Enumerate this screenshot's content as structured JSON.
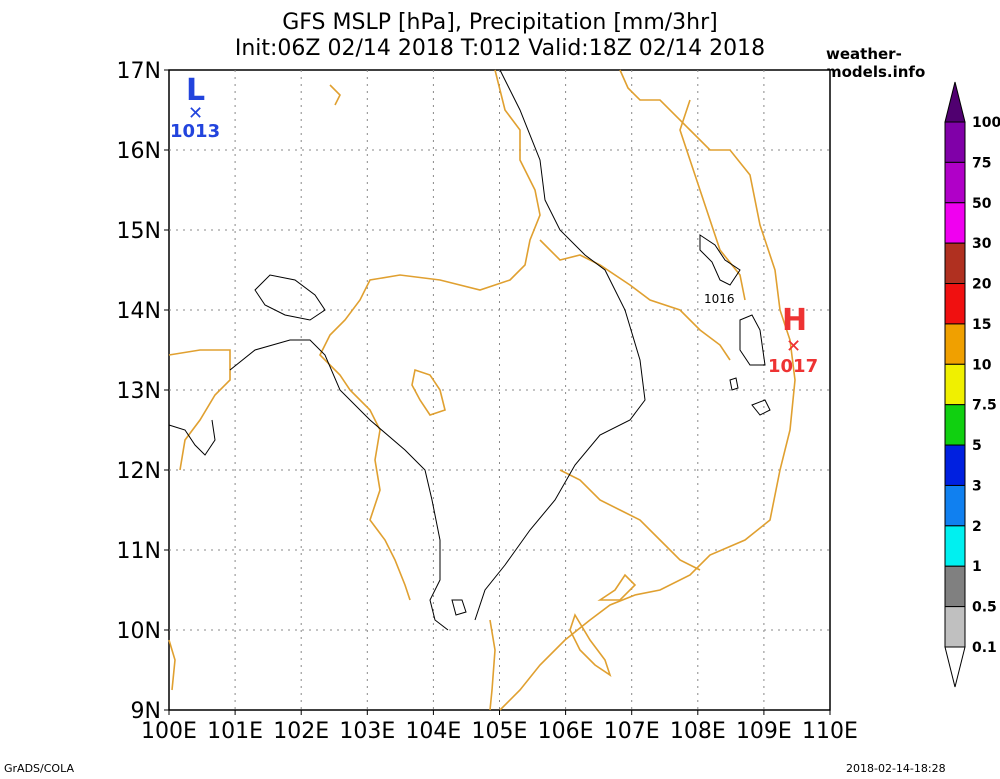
{
  "title_line1": "GFS MSLP [hPa], Precipitation [mm/3hr]",
  "title_line2": "Init:06Z 02/14 2018 T:012 Valid:18Z 02/14 2018",
  "site": "weather-models.info",
  "footer_left": "GrADS/COLA",
  "footer_right": "2018-02-14-18:28",
  "map": {
    "lat_labels": [
      "17N",
      "16N",
      "15N",
      "14N",
      "13N",
      "12N",
      "11N",
      "10N",
      "9N"
    ],
    "lon_labels": [
      "100E",
      "101E",
      "102E",
      "103E",
      "104E",
      "105E",
      "106E",
      "107E",
      "108E",
      "109E",
      "110E"
    ],
    "lat_range": [
      9,
      17
    ],
    "lon_range": [
      100,
      110
    ],
    "coast_color": "#e0a030",
    "low": {
      "symbol": "L",
      "value": "1013",
      "color": "#2244dd",
      "lon": 100.4,
      "lat": 16.5
    },
    "high": {
      "symbol": "H",
      "value": "1017",
      "color": "#ee3333",
      "lon": 109.4,
      "lat": 13.55
    },
    "isobar_label": "1016"
  },
  "colorbar": {
    "labels": [
      "100",
      "75",
      "50",
      "30",
      "20",
      "15",
      "10",
      "7.5",
      "5",
      "3",
      "2",
      "1",
      "0.5",
      "0.1"
    ],
    "colors": [
      "#8000a8",
      "#b000c8",
      "#f000f0",
      "#b03020",
      "#f01010",
      "#f0a000",
      "#f0f000",
      "#10d010",
      "#0020e0",
      "#1080f0",
      "#00f0f0",
      "#808080",
      "#c0c0c0"
    ],
    "top_color": "#500070"
  }
}
